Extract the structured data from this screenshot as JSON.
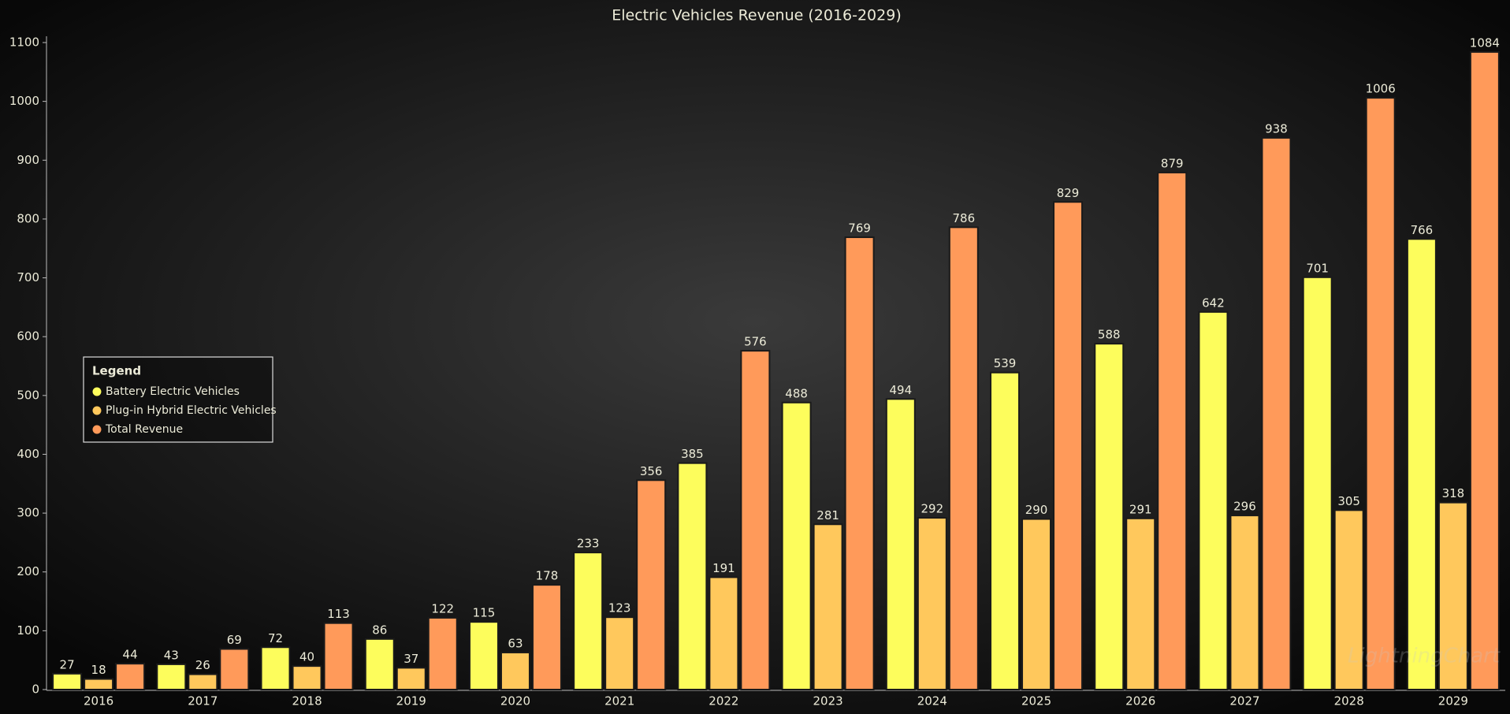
{
  "chart_data": {
    "type": "bar",
    "title": "Electric Vehicles Revenue (2016-2029)",
    "categories": [
      "2016",
      "2017",
      "2018",
      "2019",
      "2020",
      "2021",
      "2022",
      "2023",
      "2024",
      "2025",
      "2026",
      "2027",
      "2028",
      "2029"
    ],
    "series": [
      {
        "name": "Battery Electric Vehicles",
        "color": "#fdfd5c",
        "values": [
          27,
          43,
          72,
          86,
          115,
          233,
          385,
          488,
          494,
          539,
          588,
          642,
          701,
          766
        ]
      },
      {
        "name": "Plug-in Hybrid Electric Vehicles",
        "color": "#ffc85c",
        "values": [
          18,
          26,
          40,
          37,
          63,
          123,
          191,
          281,
          292,
          290,
          291,
          296,
          305,
          318
        ]
      },
      {
        "name": "Total Revenue",
        "color": "#ff9a5a",
        "values": [
          44,
          69,
          113,
          122,
          178,
          356,
          576,
          769,
          786,
          829,
          879,
          938,
          1006,
          1084
        ]
      }
    ],
    "ylim": [
      0,
      1100
    ],
    "yticks": [
      0,
      100,
      200,
      300,
      400,
      500,
      600,
      700,
      800,
      900,
      1000,
      1100
    ],
    "legend_title": "Legend",
    "legend_position": "left",
    "watermark": "LightningChart"
  }
}
